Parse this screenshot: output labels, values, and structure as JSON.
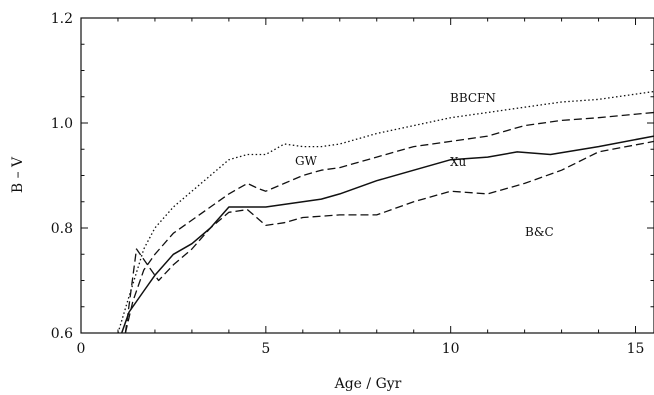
{
  "chart_data": {
    "type": "line",
    "title": "",
    "xlabel": "Age / Gyr",
    "ylabel": "B – V",
    "xlim": [
      0,
      15.5
    ],
    "ylim": [
      0.6,
      1.2
    ],
    "xticks": [
      0,
      5,
      10,
      15
    ],
    "yticks": [
      0.6,
      0.8,
      1.0,
      1.2
    ],
    "xtick_labels": [
      "0",
      "5",
      "10",
      "15"
    ],
    "ytick_labels": [
      "0.6",
      "0.8",
      "1.0",
      "1.2"
    ],
    "grid": false,
    "series": [
      {
        "name": "BBCFN",
        "style": "dotted",
        "x": [
          1.0,
          1.3,
          1.7,
          2.0,
          2.5,
          3.0,
          3.5,
          4.0,
          4.5,
          5.0,
          5.5,
          6.0,
          6.5,
          7.0,
          8.0,
          9.0,
          10.0,
          11.0,
          12.0,
          13.0,
          14.0,
          15.5
        ],
        "y": [
          0.6,
          0.67,
          0.76,
          0.8,
          0.84,
          0.87,
          0.9,
          0.93,
          0.94,
          0.94,
          0.96,
          0.955,
          0.955,
          0.96,
          0.98,
          0.995,
          1.01,
          1.02,
          1.03,
          1.04,
          1.045,
          1.06
        ]
      },
      {
        "name": "GW",
        "style": "dashed",
        "x": [
          1.2,
          1.4,
          1.7,
          2.0,
          2.5,
          3.0,
          3.5,
          4.0,
          4.5,
          4.8,
          5.0,
          5.5,
          6.0,
          6.5,
          7.0,
          8.0,
          9.0,
          10.0,
          11.0,
          12.0,
          13.0,
          14.0,
          15.5
        ],
        "y": [
          0.6,
          0.66,
          0.72,
          0.75,
          0.79,
          0.815,
          0.84,
          0.865,
          0.885,
          0.875,
          0.87,
          0.885,
          0.9,
          0.91,
          0.915,
          0.935,
          0.955,
          0.965,
          0.975,
          0.995,
          1.005,
          1.01,
          1.02
        ]
      },
      {
        "name": "Xu",
        "style": "solid",
        "x": [
          1.1,
          1.3,
          1.7,
          2.0,
          2.5,
          3.0,
          3.5,
          4.0,
          4.5,
          5.0,
          5.5,
          6.0,
          6.5,
          7.0,
          8.0,
          9.0,
          10.0,
          11.0,
          11.8,
          12.7,
          14.0,
          15.5
        ],
        "y": [
          0.6,
          0.64,
          0.68,
          0.71,
          0.75,
          0.77,
          0.8,
          0.84,
          0.84,
          0.84,
          0.845,
          0.85,
          0.855,
          0.865,
          0.89,
          0.91,
          0.93,
          0.935,
          0.945,
          0.94,
          0.955,
          0.975
        ]
      },
      {
        "name": "B&C",
        "style": "dashed",
        "x": [
          1.2,
          1.5,
          1.8,
          2.1,
          2.5,
          3.0,
          3.5,
          4.0,
          4.5,
          5.0,
          5.5,
          6.0,
          7.0,
          8.0,
          9.0,
          10.0,
          11.0,
          12.0,
          13.0,
          14.0,
          15.5
        ],
        "y": [
          0.6,
          0.76,
          0.73,
          0.7,
          0.73,
          0.76,
          0.8,
          0.83,
          0.835,
          0.805,
          0.81,
          0.82,
          0.825,
          0.825,
          0.85,
          0.87,
          0.865,
          0.885,
          0.91,
          0.945,
          0.965
        ]
      }
    ]
  }
}
